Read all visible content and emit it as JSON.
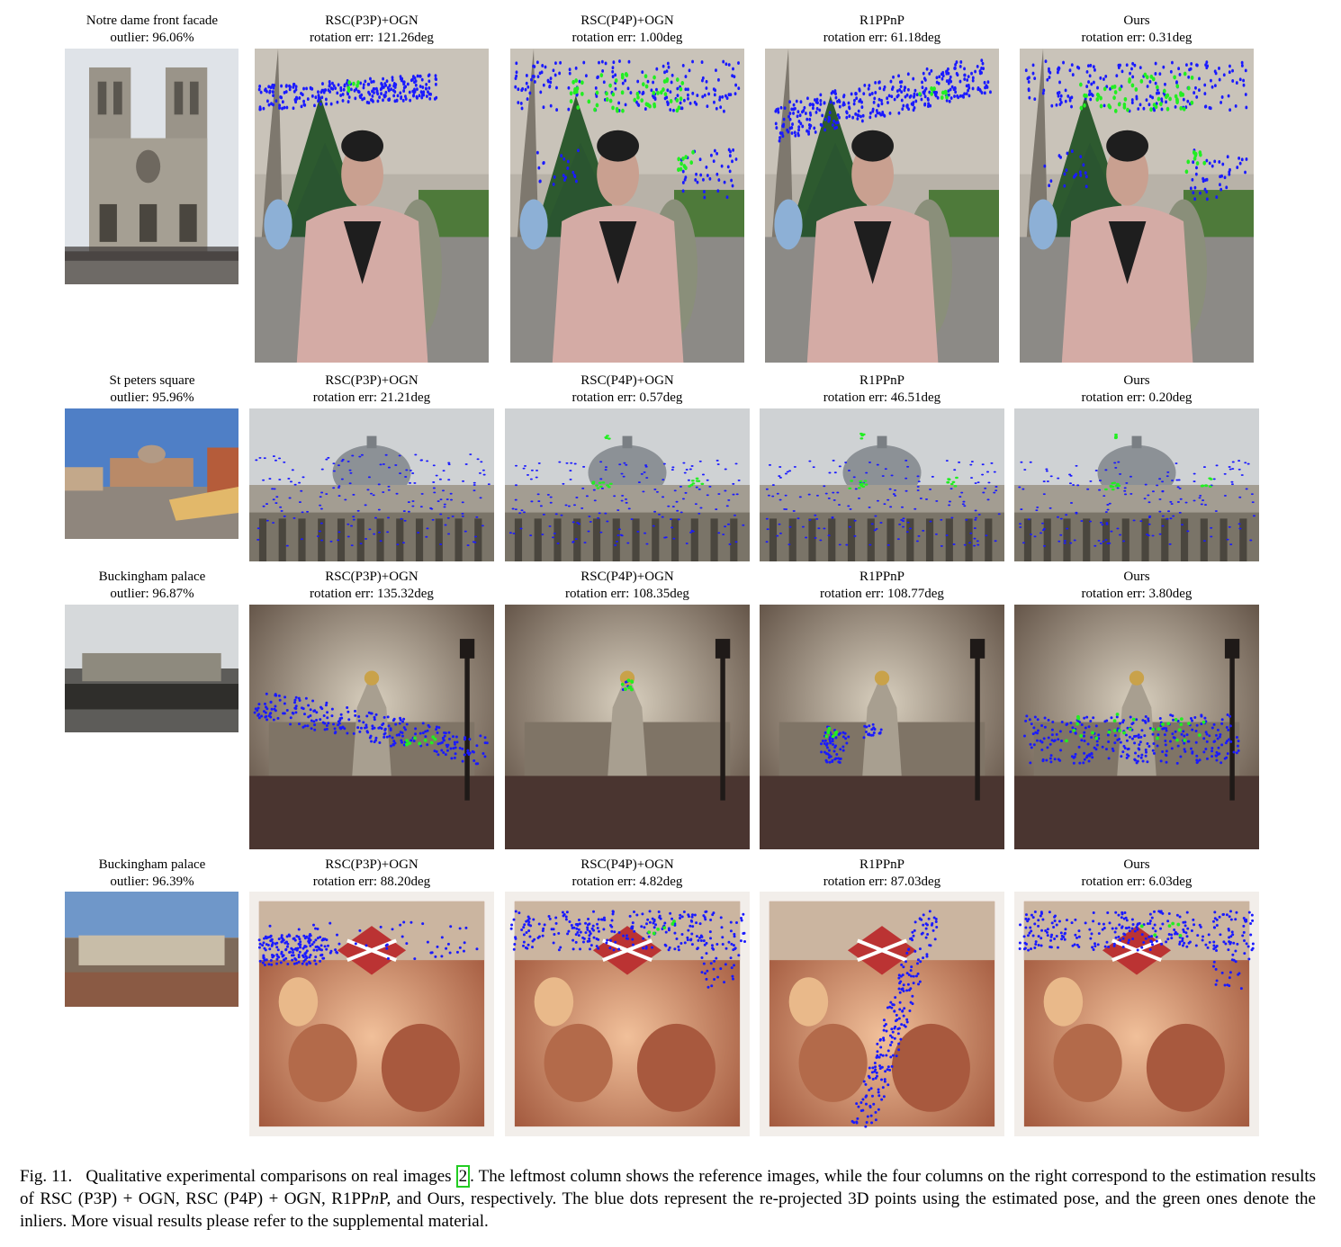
{
  "rows": [
    {
      "reference": {
        "title": "Notre dame front facade",
        "outlier": "outlier: 96.06%",
        "scene": "notre"
      },
      "results": [
        {
          "method": "RSC(P3P)+OGN",
          "err": "rotation err: 121.26deg"
        },
        {
          "method": "RSC(P4P)+OGN",
          "err": "rotation err: 1.00deg"
        },
        {
          "method": "R1PPnP",
          "err": "rotation err: 61.18deg"
        },
        {
          "method": "Ours",
          "err": "rotation err: 0.31deg"
        }
      ]
    },
    {
      "reference": {
        "title": "St peters square",
        "outlier": "outlier: 95.96%",
        "scene": "peters"
      },
      "results": [
        {
          "method": "RSC(P3P)+OGN",
          "err": "rotation err: 21.21deg"
        },
        {
          "method": "RSC(P4P)+OGN",
          "err": "rotation err: 0.57deg"
        },
        {
          "method": "R1PPnP",
          "err": "rotation err: 46.51deg"
        },
        {
          "method": "Ours",
          "err": "rotation err: 0.20deg"
        }
      ]
    },
    {
      "reference": {
        "title": "Buckingham palace",
        "outlier": "outlier: 96.87%",
        "scene": "buck"
      },
      "results": [
        {
          "method": "RSC(P3P)+OGN",
          "err": "rotation err: 135.32deg"
        },
        {
          "method": "RSC(P4P)+OGN",
          "err": "rotation err: 108.35deg"
        },
        {
          "method": "R1PPnP",
          "err": "rotation err: 108.77deg"
        },
        {
          "method": "Ours",
          "err": "rotation err: 3.80deg"
        }
      ]
    },
    {
      "reference": {
        "title": "Buckingham palace",
        "outlier": "outlier: 96.39%",
        "scene": "buck2"
      },
      "results": [
        {
          "method": "RSC(P3P)+OGN",
          "err": "rotation err: 88.20deg"
        },
        {
          "method": "RSC(P4P)+OGN",
          "err": "rotation err: 4.82deg"
        },
        {
          "method": "R1PPnP",
          "err": "rotation err: 87.03deg"
        },
        {
          "method": "Ours",
          "err": "rotation err: 6.03deg"
        }
      ]
    }
  ],
  "caption": {
    "fig": "Fig. 11.",
    "pre": "Qualitative experimental comparisons on real images",
    "cite": "2",
    "post": ". The leftmost column shows the reference images, while the four columns on the right correspond to the estimation results of RSC (P3P) + OGN, RSC (P4P) + OGN, R1PP",
    "italic": "n",
    "post2": "P, and Ours, respectively. The blue dots represent the re-projected 3D points using the estimated pose, and the green ones denote the inliers. More visual results please refer to the supplemental material."
  },
  "colors": {
    "reprojected": "#1a1aff",
    "inlier": "#22ee22"
  }
}
